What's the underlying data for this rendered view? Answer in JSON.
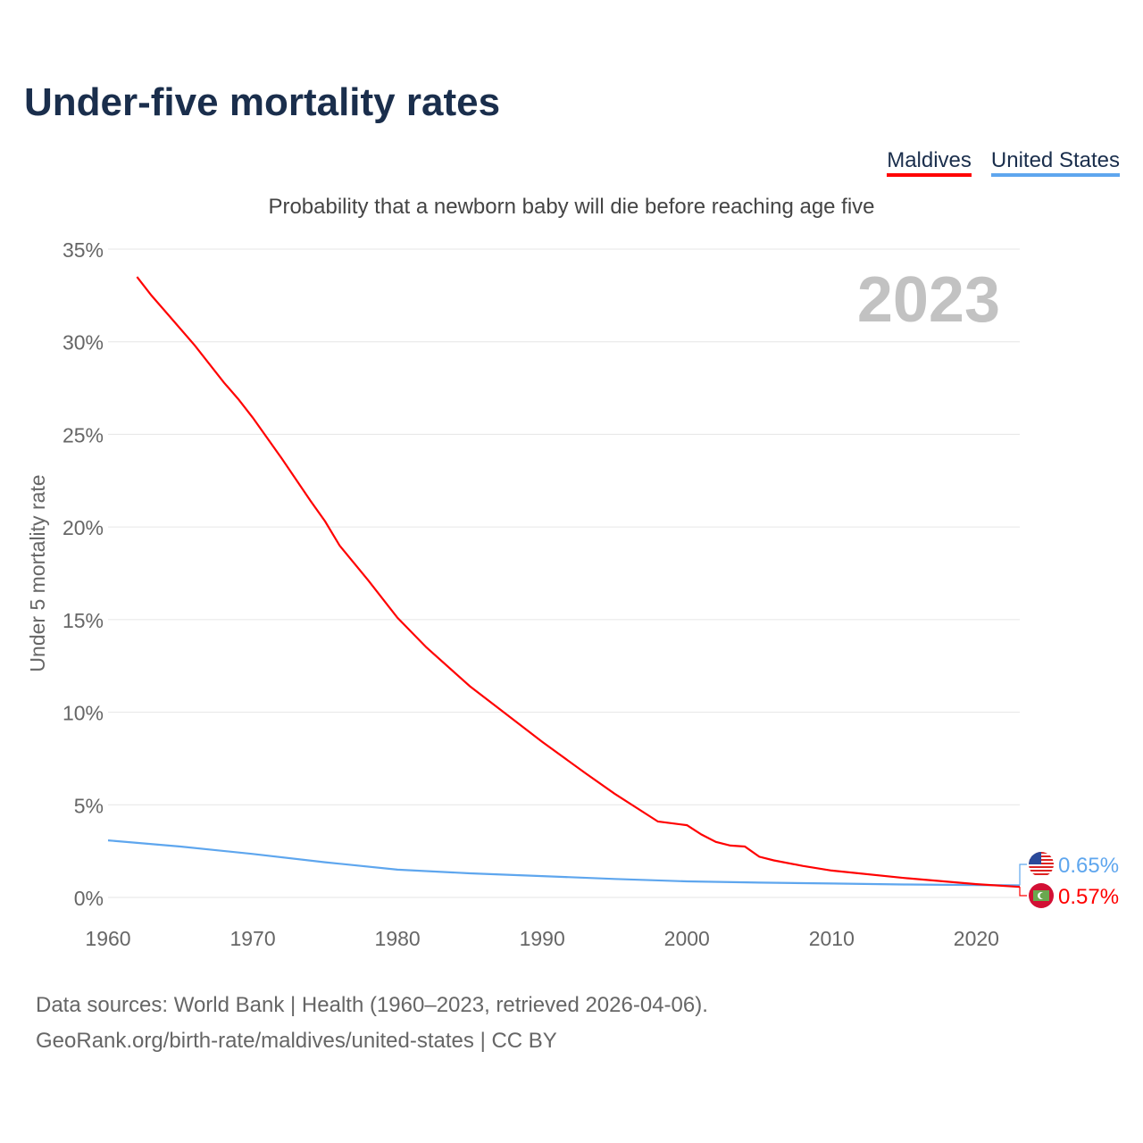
{
  "title": "Under-five mortality rates",
  "legend": [
    {
      "label": "Maldives",
      "color": "#ff0000"
    },
    {
      "label": "United States",
      "color": "#5ea6ee"
    }
  ],
  "footer": {
    "line1": "Data sources: World Bank | Health (1960–2023, retrieved 2026-04-06).",
    "line2": "GeoRank.org/birth-rate/maldives/united-states | CC BY"
  },
  "chart_data": {
    "type": "line",
    "title": "Under-five mortality rates",
    "subtitle": "Probability that a newborn baby will die before reaching age five",
    "ylabel": "Under 5 mortality rate",
    "xlabel": "",
    "year_label": "2023",
    "xlim": [
      1960,
      2023
    ],
    "ylim": [
      0,
      35
    ],
    "xticks": [
      "1960",
      "1970",
      "1980",
      "1990",
      "2000",
      "2010",
      "2020"
    ],
    "yticks": [
      "0%",
      "5%",
      "10%",
      "15%",
      "20%",
      "25%",
      "30%",
      "35%"
    ],
    "grid": true,
    "series": [
      {
        "name": "Maldives",
        "color": "#ff0000",
        "end_label": "0.57%",
        "x": [
          1962,
          1963,
          1964,
          1966,
          1968,
          1969,
          1970,
          1972,
          1974,
          1975,
          1976,
          1978,
          1980,
          1982,
          1985,
          1987,
          1990,
          1993,
          1995,
          1998,
          2000,
          2001,
          2002,
          2003,
          2004,
          2005,
          2006,
          2008,
          2010,
          2015,
          2020,
          2023
        ],
        "y": [
          33.5,
          32.5,
          31.6,
          29.8,
          27.8,
          26.9,
          25.9,
          23.7,
          21.4,
          20.3,
          19.0,
          17.1,
          15.1,
          13.5,
          11.4,
          10.2,
          8.4,
          6.7,
          5.6,
          4.1,
          3.9,
          3.4,
          3.0,
          2.8,
          2.75,
          2.2,
          2.0,
          1.7,
          1.45,
          1.05,
          0.72,
          0.57
        ]
      },
      {
        "name": "United States",
        "color": "#5ea6ee",
        "end_label": "0.65%",
        "x": [
          1960,
          1965,
          1970,
          1975,
          1980,
          1985,
          1990,
          1995,
          2000,
          2005,
          2010,
          2015,
          2020,
          2023
        ],
        "y": [
          3.08,
          2.75,
          2.35,
          1.9,
          1.5,
          1.3,
          1.15,
          1.0,
          0.87,
          0.8,
          0.75,
          0.7,
          0.67,
          0.65
        ]
      }
    ]
  }
}
